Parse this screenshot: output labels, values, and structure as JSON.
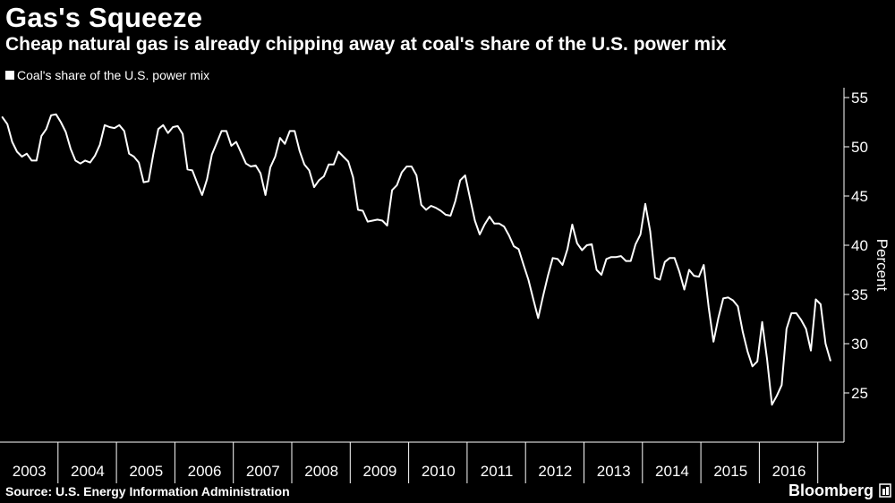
{
  "header": {
    "title": "Gas's Squeeze",
    "subtitle": "Cheap natural gas is already chipping away at coal's share of the U.S. power mix"
  },
  "legend": {
    "label": "Coal's share of the U.S. power mix"
  },
  "footer": {
    "source": "Source: U.S. Energy Information Administration",
    "brand": "Bloomberg"
  },
  "colors": {
    "background": "#000000",
    "line": "#ffffff",
    "axis": "#ffffff"
  },
  "chart_data": {
    "type": "line",
    "title": "Gas's Squeeze",
    "subtitle": "Cheap natural gas is already chipping away at coal's share of the U.S. power mix",
    "ylabel": "Percent",
    "xlabel": "",
    "ylim": [
      20,
      56
    ],
    "yticks": [
      25,
      30,
      35,
      40,
      45,
      50,
      55
    ],
    "x_tick_labels": [
      "2003",
      "2004",
      "2005",
      "2006",
      "2007",
      "2008",
      "2009",
      "2010",
      "2011",
      "2012",
      "2013",
      "2014",
      "2015",
      "2016"
    ],
    "legend_position": "top-left",
    "grid": false,
    "series": [
      {
        "name": "Coal's share of the U.S. power mix",
        "start": "2003-01",
        "frequency": "monthly",
        "values": [
          53,
          52.3,
          50.5,
          49.5,
          49,
          49.3,
          48.6,
          48.6,
          51.1,
          51.8,
          53.2,
          53.3,
          52.5,
          51.5,
          49.8,
          48.6,
          48.3,
          48.6,
          48.4,
          49.1,
          50.2,
          52.2,
          52,
          51.9,
          52.2,
          51.6,
          49.3,
          49,
          48.4,
          46.4,
          46.5,
          49.3,
          51.8,
          52.2,
          51.4,
          52,
          52.1,
          51.3,
          47.7,
          47.6,
          46.3,
          45.1,
          46.7,
          49.2,
          50.4,
          51.6,
          51.6,
          50.1,
          50.5,
          49.4,
          48.3,
          48,
          48.1,
          47.3,
          45.1,
          47.9,
          49,
          50.9,
          50.3,
          51.6,
          51.6,
          49.6,
          48.2,
          47.6,
          45.9,
          46.6,
          47,
          48.2,
          48.2,
          49.5,
          49,
          48.5,
          46.9,
          43.6,
          43.5,
          42.4,
          42.5,
          42.6,
          42.5,
          42,
          45.6,
          46.1,
          47.4,
          48,
          48,
          47.1,
          44.1,
          43.6,
          44,
          43.8,
          43.5,
          43.1,
          43,
          44.5,
          46.6,
          47.1,
          44.8,
          42.5,
          41.1,
          42.1,
          42.9,
          42.2,
          42.2,
          41.9,
          41,
          39.9,
          39.6,
          38,
          36.5,
          34.5,
          32.6,
          34.8,
          36.9,
          38.7,
          38.6,
          38,
          39.6,
          42.1,
          40.2,
          39.5,
          40,
          40.1,
          37.5,
          37,
          38.6,
          38.8,
          38.8,
          38.9,
          38.4,
          38.4,
          40.1,
          41.1,
          44.2,
          41.4,
          36.7,
          36.5,
          38.3,
          38.7,
          38.7,
          37.3,
          35.5,
          37.5,
          36.9,
          36.8,
          38,
          33.7,
          30.2,
          32.6,
          34.6,
          34.7,
          34.4,
          33.8,
          31.2,
          29.2,
          27.7,
          28.2,
          32.2,
          28.4,
          23.8,
          24.7,
          25.8,
          31.5,
          33.1,
          33.1,
          32.4,
          31.5,
          29.3,
          34.5,
          34,
          30,
          28.3
        ]
      }
    ]
  }
}
